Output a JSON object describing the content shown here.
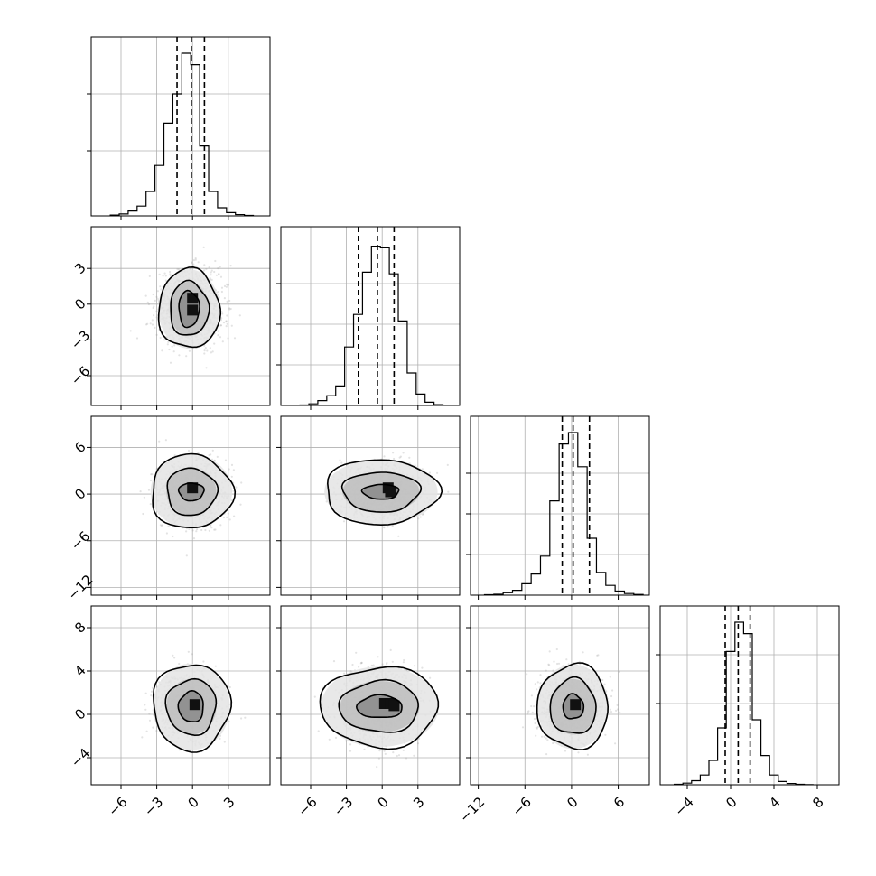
{
  "chart_data": {
    "type": "corner",
    "grid": true,
    "quantile_lines": "dashed",
    "n_params": 4,
    "params": [
      {
        "range": [
          -8.5,
          6.5
        ],
        "ticks": [
          -6,
          -3,
          0,
          3
        ],
        "tick_labels": [
          "−6",
          "−3",
          "0",
          "3"
        ],
        "quantiles": [
          -1.3,
          -0.1,
          1.0
        ],
        "hist_edges": [
          -6.9,
          -6.15,
          -5.4,
          -4.65,
          -3.9,
          -3.15,
          -2.4,
          -1.65,
          -0.9,
          -0.15,
          0.6,
          1.35,
          2.1,
          2.85,
          3.6,
          4.35,
          5.1
        ],
        "hist_counts": [
          0.005,
          0.012,
          0.03,
          0.06,
          0.15,
          0.31,
          0.57,
          0.75,
          1.0,
          0.93,
          0.43,
          0.15,
          0.05,
          0.02,
          0.008,
          0.003
        ],
        "hist_ylim": [
          0,
          1.1
        ],
        "hist_yticks": [
          0.4,
          0.75
        ]
      },
      {
        "range": [
          -8.5,
          6.5
        ],
        "ticks": [
          -6,
          -3,
          0,
          3
        ],
        "tick_labels": [
          "−6",
          "−3",
          "0",
          "3"
        ],
        "quantiles": [
          -2.0,
          -0.4,
          1.0
        ],
        "hist_edges": [
          -6.9,
          -6.15,
          -5.4,
          -4.65,
          -3.9,
          -3.15,
          -2.4,
          -1.65,
          -0.9,
          -0.15,
          0.6,
          1.35,
          2.1,
          2.85,
          3.6,
          4.35,
          5.1
        ],
        "hist_counts": [
          0.003,
          0.01,
          0.03,
          0.06,
          0.12,
          0.36,
          0.56,
          0.82,
          0.98,
          0.97,
          0.81,
          0.52,
          0.2,
          0.07,
          0.02,
          0.005
        ],
        "hist_ylim": [
          0,
          1.1
        ],
        "hist_yticks": [
          0.25,
          0.5,
          0.75
        ]
      },
      {
        "range": [
          -13,
          10
        ],
        "ticks": [
          -12,
          -6,
          0,
          6
        ],
        "tick_labels": [
          "−12",
          "−6",
          "0",
          "6"
        ],
        "quantiles": [
          -1.2,
          0.2,
          2.3
        ],
        "hist_edges": [
          -11.2,
          -10.0,
          -8.8,
          -7.6,
          -6.4,
          -5.2,
          -4.0,
          -2.8,
          -1.6,
          -0.4,
          0.8,
          2.0,
          3.2,
          4.4,
          5.6,
          6.8,
          8.0,
          9.2
        ],
        "hist_counts": [
          0.003,
          0.006,
          0.015,
          0.03,
          0.07,
          0.13,
          0.24,
          0.58,
          0.93,
          1.0,
          0.79,
          0.35,
          0.14,
          0.06,
          0.025,
          0.01,
          0.004
        ],
        "hist_ylim": [
          0,
          1.1
        ],
        "hist_yticks": [
          0.25,
          0.5,
          0.75
        ]
      },
      {
        "range": [
          -6.5,
          10
        ],
        "ticks": [
          -4,
          0,
          4,
          8
        ],
        "tick_labels": [
          "−4",
          "0",
          "4",
          "8"
        ],
        "quantiles": [
          -0.5,
          0.7,
          1.8
        ],
        "hist_edges": [
          -5.2,
          -4.4,
          -3.6,
          -2.8,
          -2.0,
          -1.2,
          -0.4,
          0.4,
          1.2,
          2.0,
          2.8,
          3.6,
          4.4,
          5.2,
          6.0,
          6.8,
          7.6
        ],
        "hist_counts": [
          0.003,
          0.01,
          0.025,
          0.06,
          0.15,
          0.35,
          0.82,
          1.0,
          0.93,
          0.4,
          0.18,
          0.06,
          0.02,
          0.008,
          0.003,
          0.001
        ],
        "hist_ylim": [
          0,
          1.1
        ],
        "hist_yticks": [
          0.5,
          0.8
        ]
      }
    ],
    "pairs": [
      {
        "row": 1,
        "col": 0,
        "mean": [
          -0.3,
          -0.4
        ],
        "sigma": [
          1.3,
          1.5
        ],
        "core": [
          [
            0,
            0.5
          ],
          [
            0,
            -0.5
          ]
        ],
        "levels": [
          [
            1.35,
            1.75
          ],
          [
            0.85,
            1.2
          ],
          [
            0.45,
            0.8
          ]
        ]
      },
      {
        "row": 2,
        "col": 0,
        "mean": [
          -0.1,
          0.3
        ],
        "sigma": [
          1.3,
          2.0
        ],
        "core": [
          [
            0,
            0.8
          ]
        ],
        "levels": [
          [
            1.8,
            2.5
          ],
          [
            1.1,
            1.6
          ],
          [
            0.55,
            0.6
          ]
        ]
      },
      {
        "row": 2,
        "col": 1,
        "mean": [
          -0.1,
          0.3
        ],
        "sigma": [
          1.6,
          1.7
        ],
        "core": [
          [
            0.5,
            0.8
          ],
          [
            0.7,
            0.3
          ]
        ],
        "levels": [
          [
            2.5,
            2.2
          ],
          [
            1.7,
            1.35
          ],
          [
            0.8,
            0.5
          ]
        ]
      },
      {
        "row": 3,
        "col": 0,
        "mean": [
          -0.1,
          0.7
        ],
        "sigma": [
          1.3,
          1.5
        ],
        "core": [
          [
            0.2,
            0.9
          ]
        ],
        "levels": [
          [
            1.7,
            2.1
          ],
          [
            1.1,
            1.35
          ],
          [
            0.55,
            0.75
          ]
        ]
      },
      {
        "row": 3,
        "col": 1,
        "mean": [
          -0.2,
          0.7
        ],
        "sigma": [
          1.6,
          1.6
        ],
        "core": [
          [
            0.2,
            1.0
          ],
          [
            0.7,
            1.0
          ],
          [
            1.0,
            0.8
          ]
        ],
        "levels": [
          [
            2.6,
            1.95
          ],
          [
            1.75,
            1.25
          ],
          [
            1.0,
            0.55
          ]
        ]
      },
      {
        "row": 3,
        "col": 2,
        "mean": [
          0.2,
          0.7
        ],
        "sigma": [
          2.0,
          1.5
        ],
        "core": [
          [
            0.5,
            0.9
          ]
        ],
        "levels": [
          [
            2.4,
            2.05
          ],
          [
            1.55,
            1.35
          ],
          [
            0.7,
            0.6
          ]
        ]
      }
    ]
  }
}
